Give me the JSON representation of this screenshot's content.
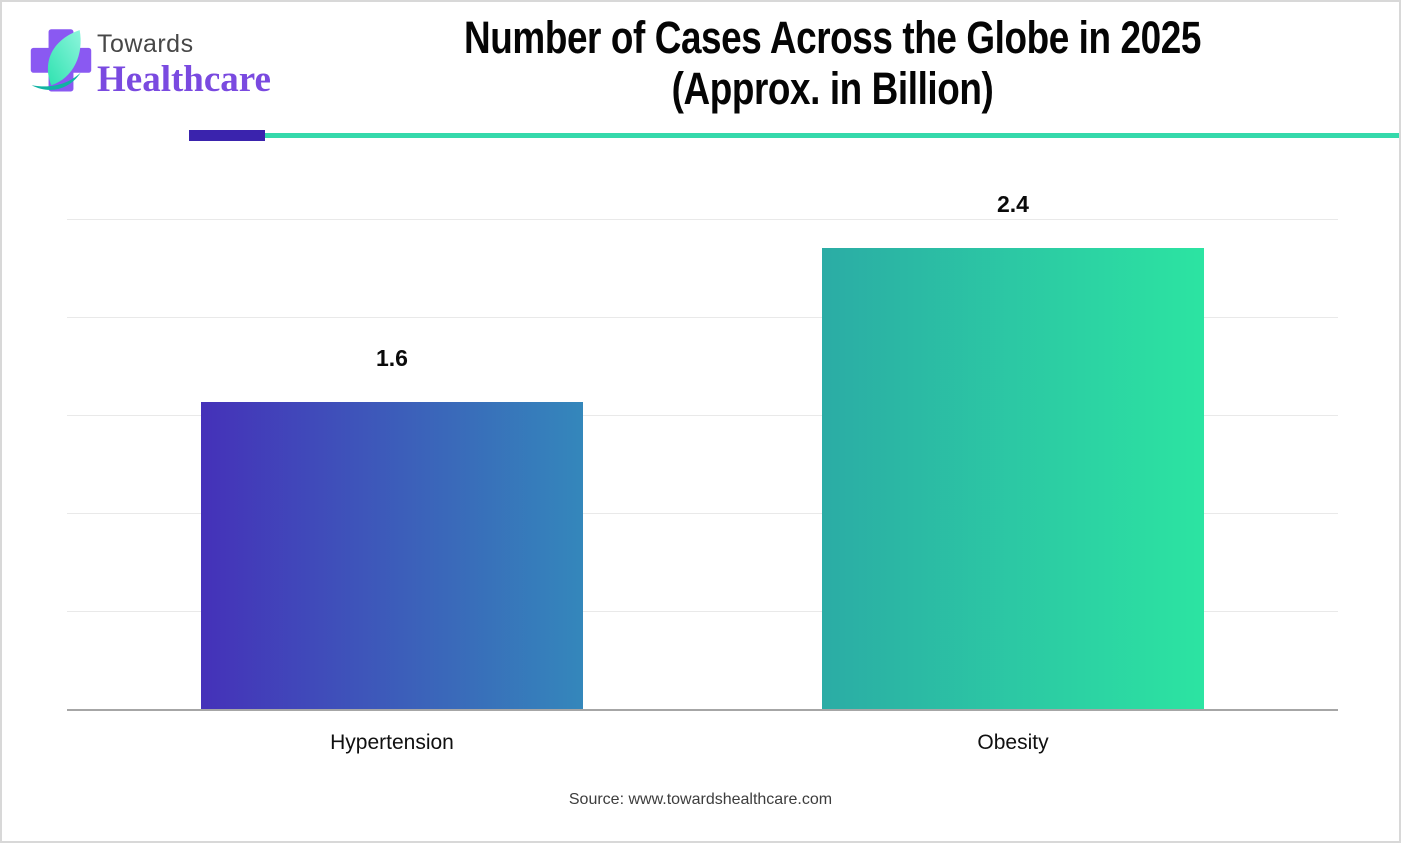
{
  "brand": {
    "name_line1": "Towards",
    "name_line2": "Healthcare",
    "logo_colors": {
      "cross": "#8a59f2",
      "leaf": "#3fe4b7",
      "leaf_accent": "#10b3a3"
    }
  },
  "header": {
    "title_line1": "Number of Cases Across the Globe in 2025",
    "title_line2": "(Approx. in Billion)",
    "divider_accent_color": "#3a23ad",
    "divider_line_color": "#35d9ab"
  },
  "chart_data": {
    "type": "bar",
    "title": "Number of Cases Across the Globe in 2025 (Approx. in Billion)",
    "unit": "Billion",
    "categories": [
      "Hypertension",
      "Obesity"
    ],
    "values": [
      1.6,
      2.4
    ],
    "value_labels": [
      "1.6",
      "2.4"
    ],
    "ylim": [
      0,
      2.55
    ],
    "grid": "horizontal",
    "legend": "none",
    "bar_gradients": [
      {
        "from": "#4531b9",
        "to": "#3487bb"
      },
      {
        "from": "#2baca5",
        "to": "#2ce4a2"
      }
    ]
  },
  "footer": {
    "source": "Source: www.towardshealthcare.com"
  }
}
